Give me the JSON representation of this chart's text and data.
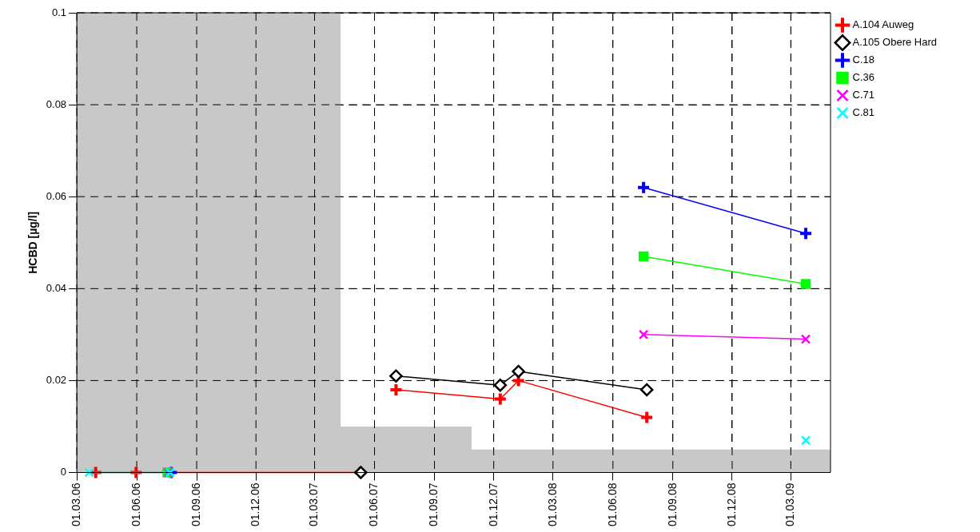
{
  "chart_data": {
    "type": "line",
    "ylabel": "HCBD [µg/l]",
    "xlim": [
      "2006-03-01",
      "2009-05-01"
    ],
    "xticks": [
      {
        "value": "2006-03-01",
        "label": "01.03.06"
      },
      {
        "value": "2006-06-01",
        "label": "01.06.06"
      },
      {
        "value": "2006-09-01",
        "label": "01.09.06"
      },
      {
        "value": "2006-12-01",
        "label": "01.12.06"
      },
      {
        "value": "2007-03-01",
        "label": "01.03.07"
      },
      {
        "value": "2007-06-01",
        "label": "01.06.07"
      },
      {
        "value": "2007-09-01",
        "label": "01.09.07"
      },
      {
        "value": "2007-12-01",
        "label": "01.12.07"
      },
      {
        "value": "2008-03-01",
        "label": "01.03.08"
      },
      {
        "value": "2008-06-01",
        "label": "01.06.08"
      },
      {
        "value": "2008-09-01",
        "label": "01.09.08"
      },
      {
        "value": "2008-12-01",
        "label": "01.12.08"
      },
      {
        "value": "2009-03-01",
        "label": "01.03.09"
      }
    ],
    "ylim": [
      0,
      0.1
    ],
    "yticks": [
      0,
      0.02,
      0.04,
      0.06,
      0.08,
      0.1
    ],
    "grid": true,
    "legend": "top right",
    "line_style": "solid",
    "series": [
      {
        "name": "A.104 Auweg",
        "color": "#ff0000",
        "marker": "plus",
        "x": [
          "2006-03-30",
          "2006-05-31",
          "2007-05-10",
          "2007-06-01",
          "2007-07-04",
          "2007-12-11",
          "2008-01-08",
          "2008-07-23"
        ],
        "values": [
          0,
          0,
          0,
          null,
          0.018,
          0.016,
          0.02,
          0.012
        ]
      },
      {
        "name": "A.105 Obere Hard",
        "color": "#000000",
        "marker": "diamond",
        "x": [
          "2007-05-11",
          "2007-06-01",
          "2007-07-04",
          "2007-12-11",
          "2008-01-08",
          "2008-07-23"
        ],
        "values": [
          0,
          null,
          0.021,
          0.019,
          0.022,
          0.018
        ]
      },
      {
        "name": "C.18",
        "color": "#0000ff",
        "marker": "plus",
        "x": [
          "2006-07-24",
          "2007-06-01",
          "2008-07-18",
          "2009-03-24"
        ],
        "values": [
          0,
          null,
          0.062,
          0.052
        ]
      },
      {
        "name": "C.36",
        "color": "#00ff00",
        "marker": "square",
        "x": [
          "2006-07-18",
          "2007-06-01",
          "2008-07-18",
          "2009-03-24"
        ],
        "values": [
          0,
          null,
          0.047,
          0.041
        ]
      },
      {
        "name": "C.71",
        "color": "#ff00ff",
        "marker": "cross",
        "x": [
          "2006-07-20",
          "2007-06-01",
          "2008-07-18",
          "2009-03-24"
        ],
        "values": [
          0,
          null,
          0.03,
          0.029
        ]
      },
      {
        "name": "C.81",
        "color": "#00ffff",
        "marker": "cross",
        "x": [
          "2006-03-20",
          "2006-07-22",
          "2007-06-01",
          "2009-03-24"
        ],
        "values": [
          0,
          0,
          null,
          0.007
        ]
      },
      {
        "type": "area",
        "color": "#c8c8c8",
        "x": [
          "2006-03-01",
          "2007-04-10",
          "2007-04-10",
          "2007-10-28",
          "2007-10-28",
          "2009-05-01"
        ],
        "values": [
          0.1,
          0.1,
          0.01,
          0.01,
          0.005,
          0.005
        ]
      }
    ]
  }
}
